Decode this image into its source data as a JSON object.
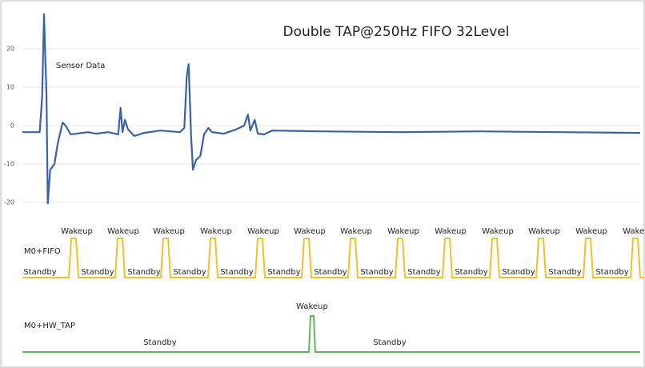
{
  "chart_data": {
    "type": "line",
    "title": "Double TAP@250Hz FIFO 32Level",
    "annotation": "Sensor Data",
    "series": [
      {
        "name": "Sensor Data",
        "color": "#3a62a7",
        "x": [
          0,
          2.8,
          3.2,
          3.5,
          3.9,
          4.1,
          4.5,
          5.2,
          5.7,
          6.5,
          7.0,
          7.8,
          8.7,
          10.6,
          11.9,
          13.9,
          15.5,
          15.9,
          16.2,
          16.6,
          17.1,
          18.1,
          19.7,
          22.3,
          25.5,
          26.2,
          26.6,
          26.9,
          27.3,
          27.6,
          28.1,
          28.8,
          29.4,
          30.1,
          30.7,
          32.6,
          34.6,
          35.9,
          36.5,
          36.9,
          37.6,
          38.1,
          39.1,
          40.4,
          48.2,
          61.1,
          74.1,
          87.0,
          100
        ],
        "values": [
          -1.7,
          -1.7,
          7.7,
          29,
          7.7,
          -20.2,
          -11.5,
          -10,
          -4.8,
          0.8,
          0,
          -2.3,
          -2.1,
          -1.7,
          -2.1,
          -1.7,
          -2.3,
          4.6,
          -1.7,
          1.5,
          -1,
          -2.7,
          -1.9,
          -1.3,
          -1.7,
          -0.6,
          12.9,
          16,
          -2.7,
          -11.5,
          -9,
          -7.9,
          -2.3,
          -0.6,
          -1.7,
          -2.1,
          -1,
          0,
          2.9,
          -1.3,
          1.5,
          -2.1,
          -2.3,
          -1.3,
          -1.5,
          -1.7,
          -1.5,
          -1.7,
          -1.9
        ]
      }
    ],
    "xlim": [
      0,
      100
    ],
    "ylim": [
      -22,
      32
    ],
    "yticks": [
      -20,
      -10,
      0,
      10,
      20
    ],
    "grid": true
  },
  "timing": {
    "fifo": {
      "label": "M0+FIFO",
      "color": "#f2c029",
      "wakeup_labels": [
        "Wakeup",
        "Wakeup",
        "Wakeup",
        "Wakeup",
        "Wakeup",
        "Wakeup",
        "Wakeup",
        "Wakeup",
        "Wakeup",
        "Wakeup",
        "Wakeup",
        "Wakeup",
        "Wakeup"
      ],
      "standby_labels": [
        "Standby",
        "Standby",
        "Standby",
        "Standby",
        "Standby",
        "Standby",
        "Standby",
        "Standby",
        "Standby",
        "Standby",
        "Standby",
        "Standby",
        "Standby"
      ]
    },
    "hw_tap": {
      "label": "M0+HW_TAP",
      "color": "#5cb85c",
      "wakeup_label": "Wakeup",
      "standby_labels": [
        "Standby",
        "Standby"
      ]
    }
  }
}
